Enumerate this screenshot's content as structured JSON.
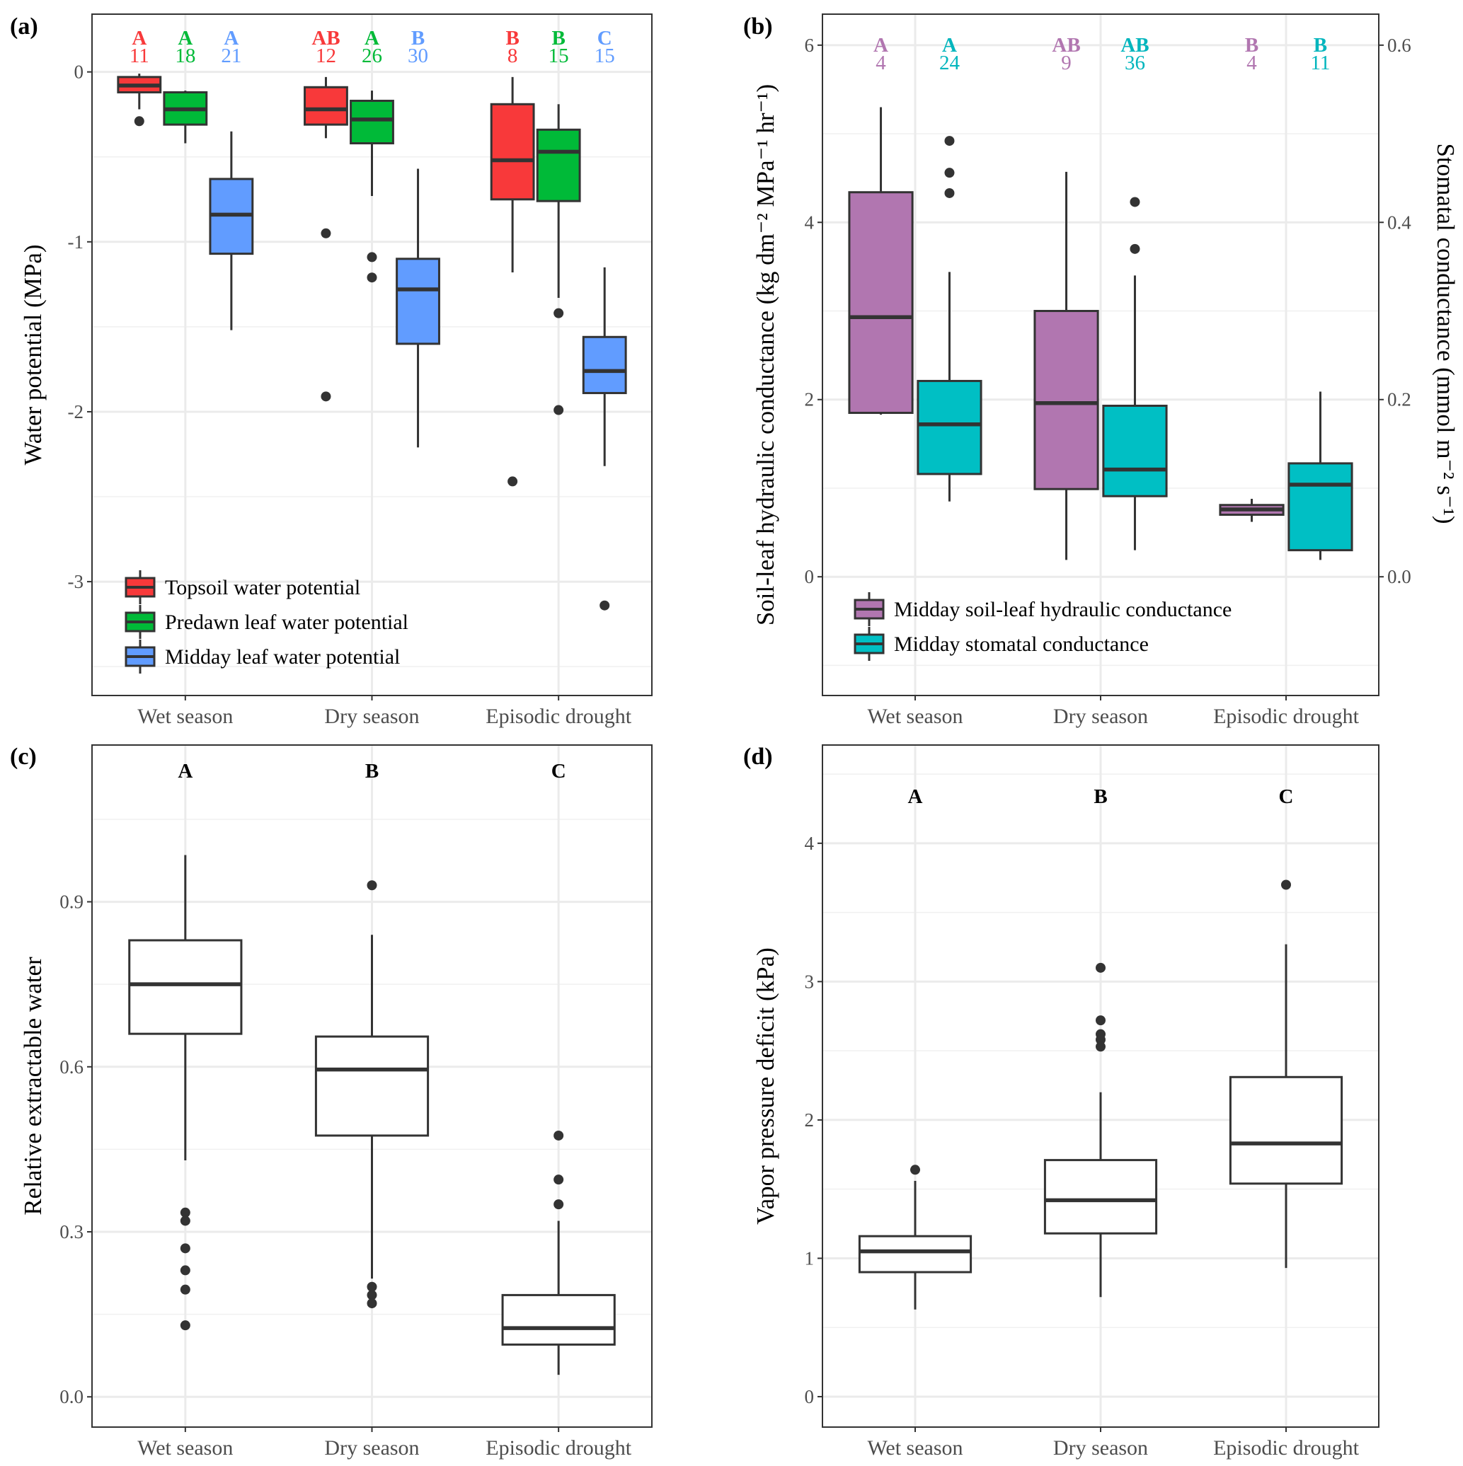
{
  "figure": {
    "categories": [
      "Wet season",
      "Dry season",
      "Episodic drought"
    ]
  },
  "chart_data": [
    {
      "panel": "(a)",
      "type": "box",
      "title": "",
      "xlabel": "",
      "ylabel": "Water potential (MPa)",
      "ylim": [
        -3.67,
        0.34
      ],
      "yticks": [
        0,
        -1,
        -2,
        -3
      ],
      "ytick_labels": [
        "0",
        "-1",
        "-2",
        "-3"
      ],
      "minor_grid": [
        -0.5,
        -1.5,
        -2.5,
        -3.5
      ],
      "grid": true,
      "legend": {
        "position": "bottom-left"
      },
      "categories": [
        "Wet season",
        "Dry season",
        "Episodic drought"
      ],
      "series": [
        {
          "name": "Topsoil water potential",
          "color": "#F8393A",
          "boxes": [
            {
              "q1": -0.12,
              "median": -0.08,
              "q3": -0.03,
              "whisker_low": -0.22,
              "whisker_high": -0.01,
              "outliers": [
                -0.29
              ],
              "letter": "A",
              "n": "11"
            },
            {
              "q1": -0.31,
              "median": -0.22,
              "q3": -0.09,
              "whisker_low": -0.39,
              "whisker_high": -0.03,
              "outliers": [
                -0.95,
                -1.91
              ],
              "letter": "AB",
              "n": "12"
            },
            {
              "q1": -0.75,
              "median": -0.52,
              "q3": -0.19,
              "whisker_low": -1.18,
              "whisker_high": -0.03,
              "outliers": [
                -2.41
              ],
              "letter": "B",
              "n": "8"
            }
          ]
        },
        {
          "name": "Predawn leaf water potential",
          "color": "#00BA38",
          "boxes": [
            {
              "q1": -0.31,
              "median": -0.22,
              "q3": -0.12,
              "whisker_low": -0.42,
              "whisker_high": -0.11,
              "outliers": [],
              "letter": "A",
              "n": "18"
            },
            {
              "q1": -0.42,
              "median": -0.28,
              "q3": -0.17,
              "whisker_low": -0.73,
              "whisker_high": -0.11,
              "outliers": [
                -1.09,
                -1.21
              ],
              "letter": "A",
              "n": "26"
            },
            {
              "q1": -0.76,
              "median": -0.47,
              "q3": -0.34,
              "whisker_low": -1.33,
              "whisker_high": -0.19,
              "outliers": [
                -1.42,
                -1.99
              ],
              "letter": "B",
              "n": "15"
            }
          ]
        },
        {
          "name": "Midday leaf water potential",
          "color": "#619CFF",
          "boxes": [
            {
              "q1": -1.07,
              "median": -0.84,
              "q3": -0.63,
              "whisker_low": -1.52,
              "whisker_high": -0.35,
              "outliers": [],
              "letter": "A",
              "n": "21"
            },
            {
              "q1": -1.6,
              "median": -1.28,
              "q3": -1.1,
              "whisker_low": -2.21,
              "whisker_high": -0.57,
              "outliers": [],
              "letter": "B",
              "n": "30"
            },
            {
              "q1": -1.89,
              "median": -1.76,
              "q3": -1.56,
              "whisker_low": -2.32,
              "whisker_high": -1.15,
              "outliers": [
                -3.14
              ],
              "letter": "C",
              "n": "15"
            }
          ]
        }
      ]
    },
    {
      "panel": "(b)",
      "type": "box",
      "title": "",
      "xlabel": "",
      "ylabel": "Soil-leaf hydraulic conductance (kg  dm⁻² MPa⁻¹ hr⁻¹)",
      "ylabel_right": "Stomatal conductance (mmol  m⁻² s⁻¹)",
      "ylim": [
        -1.34,
        6.35
      ],
      "ylim_right": [
        -0.134,
        0.635
      ],
      "yticks": [
        0,
        2,
        4,
        6
      ],
      "ytick_labels": [
        "0",
        "2",
        "4",
        "6"
      ],
      "yticks_right_labels": [
        "0.0",
        "0.2",
        "0.4",
        "0.6"
      ],
      "minor_grid": [
        -1,
        1,
        3,
        5
      ],
      "grid": true,
      "legend": {
        "position": "bottom-left"
      },
      "categories": [
        "Wet season",
        "Dry season",
        "Episodic drought"
      ],
      "series": [
        {
          "name": "Midday soil-leaf hydraulic conductance",
          "color": "#B176B0",
          "label_color": "#B176B0",
          "axis": "left",
          "boxes": [
            {
              "q1": 1.85,
              "median": 2.93,
              "q3": 4.34,
              "whisker_low": 1.83,
              "whisker_high": 5.3,
              "outliers": [],
              "letter": "A",
              "n": "4"
            },
            {
              "q1": 0.99,
              "median": 1.96,
              "q3": 3.0,
              "whisker_low": 0.19,
              "whisker_high": 4.57,
              "outliers": [],
              "letter": "AB",
              "n": "9"
            },
            {
              "q1": 0.7,
              "median": 0.76,
              "q3": 0.81,
              "whisker_low": 0.62,
              "whisker_high": 0.88,
              "outliers": [],
              "letter": "B",
              "n": "4"
            }
          ]
        },
        {
          "name": "Midday stomatal conductance",
          "color": "#00BFC4",
          "label_color": "#00B5BD",
          "axis": "right",
          "boxes": [
            {
              "q1": 0.116,
              "median": 0.172,
              "q3": 0.221,
              "whisker_low": 0.085,
              "whisker_high": 0.344,
              "outliers": [
                0.433,
                0.456,
                0.492
              ],
              "letter": "A",
              "n": "24"
            },
            {
              "q1": 0.091,
              "median": 0.121,
              "q3": 0.193,
              "whisker_low": 0.03,
              "whisker_high": 0.34,
              "outliers": [
                0.37,
                0.423
              ],
              "letter": "AB",
              "n": "36"
            },
            {
              "q1": 0.03,
              "median": 0.104,
              "q3": 0.128,
              "whisker_low": 0.019,
              "whisker_high": 0.209,
              "outliers": [],
              "letter": "B",
              "n": "11"
            }
          ]
        }
      ]
    },
    {
      "panel": "(c)",
      "type": "box",
      "title": "",
      "xlabel": "",
      "ylabel": "Relative extractable water",
      "ylim": [
        -0.055,
        1.185
      ],
      "yticks": [
        0.0,
        0.3,
        0.6,
        0.9
      ],
      "ytick_labels": [
        "0.0",
        "0.3",
        "0.6",
        "0.9"
      ],
      "minor_grid": [
        0.15,
        0.45,
        0.75,
        1.05
      ],
      "grid": true,
      "categories": [
        "Wet season",
        "Dry season",
        "Episodic drought"
      ],
      "series": [
        {
          "name": "Relative extractable water",
          "color": "#FFFFFF",
          "boxes": [
            {
              "q1": 0.66,
              "median": 0.75,
              "q3": 0.83,
              "whisker_low": 0.43,
              "whisker_high": 0.985,
              "outliers": [
                0.335,
                0.32,
                0.27,
                0.23,
                0.195,
                0.13
              ],
              "letter": "A"
            },
            {
              "q1": 0.475,
              "median": 0.595,
              "q3": 0.655,
              "whisker_low": 0.215,
              "whisker_high": 0.84,
              "outliers": [
                0.93,
                0.2,
                0.185,
                0.17
              ],
              "letter": "B"
            },
            {
              "q1": 0.095,
              "median": 0.125,
              "q3": 0.185,
              "whisker_low": 0.04,
              "whisker_high": 0.32,
              "outliers": [
                0.475,
                0.395,
                0.35
              ],
              "letter": "C"
            }
          ]
        }
      ]
    },
    {
      "panel": "(d)",
      "type": "box",
      "title": "",
      "xlabel": "",
      "ylabel": "Vapor pressure deficit (kPa)",
      "ylim": [
        -0.22,
        4.71
      ],
      "yticks": [
        0,
        1,
        2,
        3,
        4
      ],
      "ytick_labels": [
        "0",
        "1",
        "2",
        "3",
        "4"
      ],
      "minor_grid": [
        0.5,
        1.5,
        2.5,
        3.5,
        4.5
      ],
      "grid": true,
      "categories": [
        "Wet season",
        "Dry season",
        "Episodic drought"
      ],
      "series": [
        {
          "name": "Vapor pressure deficit",
          "color": "#FFFFFF",
          "boxes": [
            {
              "q1": 0.9,
              "median": 1.05,
              "q3": 1.16,
              "whisker_low": 0.63,
              "whisker_high": 1.56,
              "outliers": [
                1.64
              ],
              "letter": "A"
            },
            {
              "q1": 1.18,
              "median": 1.42,
              "q3": 1.71,
              "whisker_low": 0.72,
              "whisker_high": 2.2,
              "outliers": [
                3.1,
                2.72,
                2.62,
                2.58,
                2.53
              ],
              "letter": "B"
            },
            {
              "q1": 1.54,
              "median": 1.83,
              "q3": 2.31,
              "whisker_low": 0.93,
              "whisker_high": 3.27,
              "outliers": [
                3.7
              ],
              "letter": "C"
            }
          ]
        }
      ]
    }
  ]
}
